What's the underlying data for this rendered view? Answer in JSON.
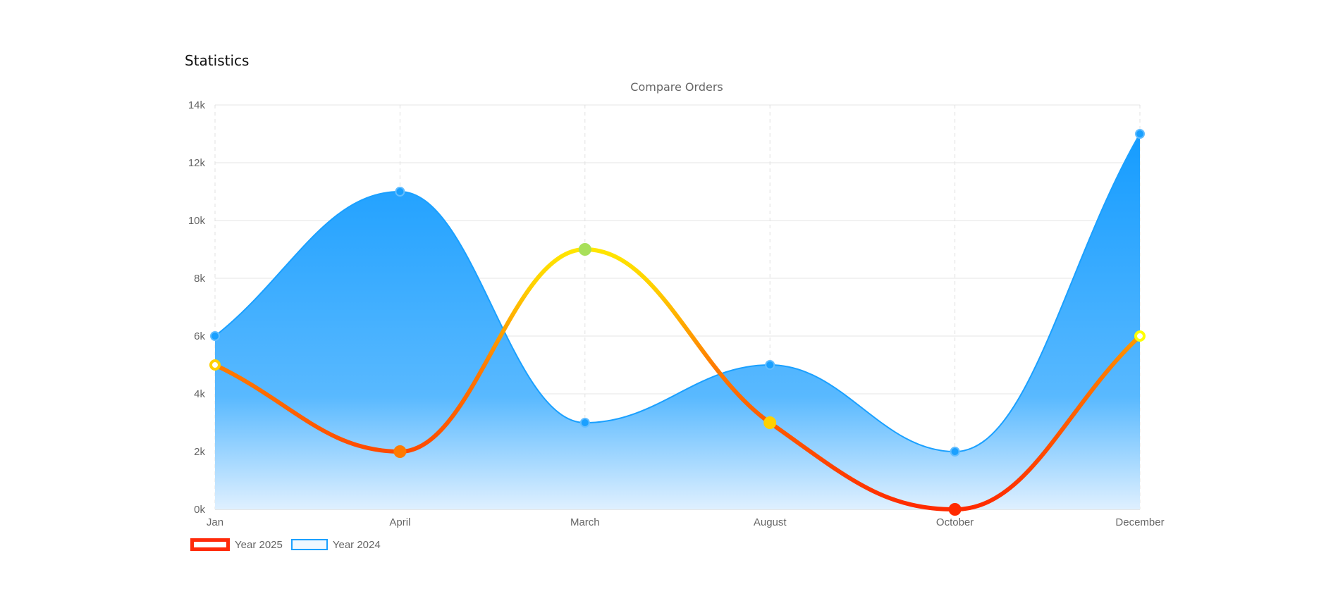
{
  "card": {
    "title": "Statistics"
  },
  "chart_data": {
    "type": "line",
    "title": "Compare Orders",
    "categories": [
      "Jan",
      "April",
      "March",
      "August",
      "October",
      "December"
    ],
    "series": [
      {
        "name": "Year 2025",
        "values": [
          5000,
          2000,
          9000,
          3000,
          0,
          6000
        ],
        "style": "gradient-line"
      },
      {
        "name": "Year 2024",
        "values": [
          6000,
          11000,
          3000,
          5000,
          2000,
          13000
        ],
        "style": "filled-area"
      }
    ],
    "ylim": [
      0,
      14000
    ],
    "y_ticks": [
      "0k",
      "2k",
      "4k",
      "6k",
      "8k",
      "10k",
      "12k",
      "14k"
    ],
    "xlabel": "",
    "ylabel": "",
    "grid": true,
    "legend_position": "bottom-left",
    "colors": {
      "year_2025_gradient": [
        "#ff2a00",
        "#ff7a00",
        "#ffd000",
        "#ffff00",
        "#a8e05a"
      ],
      "year_2025_legend": "#ff2a0a",
      "year_2024_line": "#1aa0ff",
      "year_2024_fill_top": "#159cff",
      "year_2024_fill_bottom": "#dff0ff"
    }
  },
  "legend": {
    "items": [
      {
        "label": "Year 2025"
      },
      {
        "label": "Year 2024"
      }
    ]
  }
}
